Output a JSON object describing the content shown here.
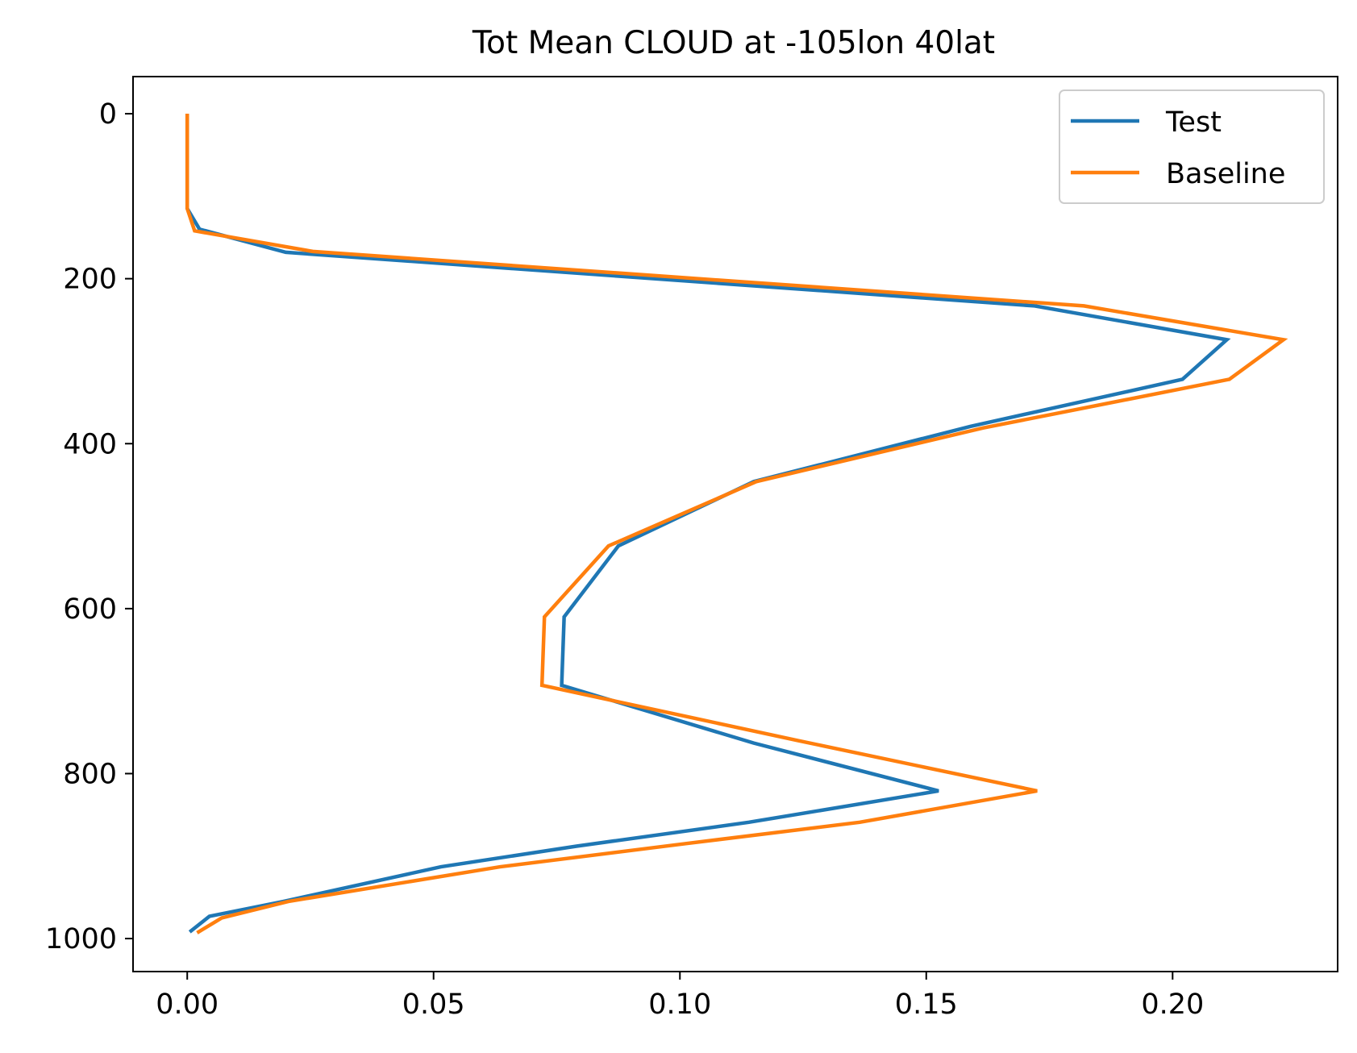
{
  "chart_data": {
    "type": "line",
    "title": "Tot Mean CLOUD at -105lon 40lat",
    "xlabel": "",
    "ylabel": "",
    "xlim": [
      -0.011,
      0.2335
    ],
    "ylim": [
      1040,
      -45
    ],
    "y_inverted": true,
    "x_ticks": [
      0.0,
      0.05,
      0.1,
      0.15,
      0.2
    ],
    "x_tick_labels": [
      "0.00",
      "0.05",
      "0.10",
      "0.15",
      "0.20"
    ],
    "y_ticks": [
      0,
      200,
      400,
      600,
      800,
      1000
    ],
    "y_tick_labels": [
      "0",
      "200",
      "400",
      "600",
      "800",
      "1000"
    ],
    "grid": false,
    "legend_position": "top-right",
    "series": [
      {
        "name": "Test",
        "color": "#1f77b4",
        "points": [
          [
            0.0,
            0
          ],
          [
            0.0,
            30
          ],
          [
            0.0,
            60
          ],
          [
            0.0,
            90
          ],
          [
            0.0,
            115
          ],
          [
            0.0025,
            140
          ],
          [
            0.02,
            168
          ],
          [
            0.172,
            233
          ],
          [
            0.211,
            274
          ],
          [
            0.202,
            322
          ],
          [
            0.159,
            379
          ],
          [
            0.115,
            446
          ],
          [
            0.0875,
            524
          ],
          [
            0.0765,
            610
          ],
          [
            0.076,
            693
          ],
          [
            0.115,
            763
          ],
          [
            0.1525,
            821
          ],
          [
            0.114,
            859
          ],
          [
            0.079,
            888
          ],
          [
            0.0515,
            913
          ],
          [
            0.0195,
            955
          ],
          [
            0.0045,
            973
          ],
          [
            0.0005,
            992
          ]
        ]
      },
      {
        "name": "Baseline",
        "color": "#ff7f0e",
        "points": [
          [
            0.0,
            0
          ],
          [
            0.0,
            30
          ],
          [
            0.0,
            60
          ],
          [
            0.0,
            90
          ],
          [
            0.0,
            115
          ],
          [
            0.0015,
            142
          ],
          [
            0.0255,
            167
          ],
          [
            0.182,
            233
          ],
          [
            0.2225,
            274
          ],
          [
            0.2115,
            322
          ],
          [
            0.1615,
            381
          ],
          [
            0.1155,
            446
          ],
          [
            0.0855,
            524
          ],
          [
            0.0725,
            610
          ],
          [
            0.072,
            693
          ],
          [
            0.124,
            760
          ],
          [
            0.1725,
            821
          ],
          [
            0.1365,
            859
          ],
          [
            0.101,
            885
          ],
          [
            0.0635,
            913
          ],
          [
            0.0205,
            955
          ],
          [
            0.007,
            975
          ],
          [
            0.002,
            993
          ]
        ]
      }
    ]
  }
}
